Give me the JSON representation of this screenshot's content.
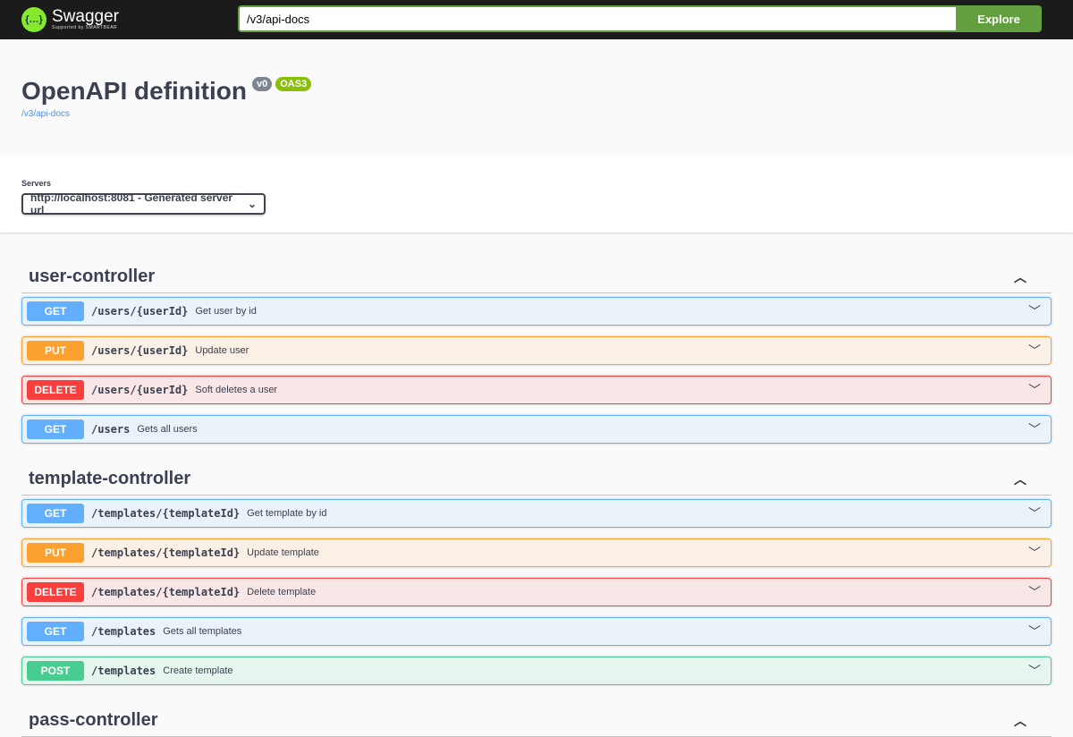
{
  "header": {
    "logo_name": "Swagger",
    "logo_sub": "Supported by SMARTBEAR",
    "url_value": "/v3/api-docs",
    "explore_label": "Explore"
  },
  "info": {
    "title": "OpenAPI definition",
    "version": "v0",
    "oas": "OAS3",
    "link": "/v3/api-docs"
  },
  "servers": {
    "label": "Servers",
    "selected": "http://localhost:8081 - Generated server url"
  },
  "colors": {
    "GET": "#61affe",
    "PUT": "#fca130",
    "DELETE": "#f93e3e",
    "POST": "#49cc90"
  },
  "tags": [
    {
      "name": "user-controller",
      "ops": [
        {
          "method": "GET",
          "path": "/users/{userId}",
          "summary": "Get user by id"
        },
        {
          "method": "PUT",
          "path": "/users/{userId}",
          "summary": "Update user"
        },
        {
          "method": "DELETE",
          "path": "/users/{userId}",
          "summary": "Soft deletes a user"
        },
        {
          "method": "GET",
          "path": "/users",
          "summary": "Gets all users"
        }
      ]
    },
    {
      "name": "template-controller",
      "ops": [
        {
          "method": "GET",
          "path": "/templates/{templateId}",
          "summary": "Get template by id"
        },
        {
          "method": "PUT",
          "path": "/templates/{templateId}",
          "summary": "Update template"
        },
        {
          "method": "DELETE",
          "path": "/templates/{templateId}",
          "summary": "Delete template"
        },
        {
          "method": "GET",
          "path": "/templates",
          "summary": "Gets all templates"
        },
        {
          "method": "POST",
          "path": "/templates",
          "summary": "Create template"
        }
      ]
    },
    {
      "name": "pass-controller",
      "ops": []
    }
  ]
}
